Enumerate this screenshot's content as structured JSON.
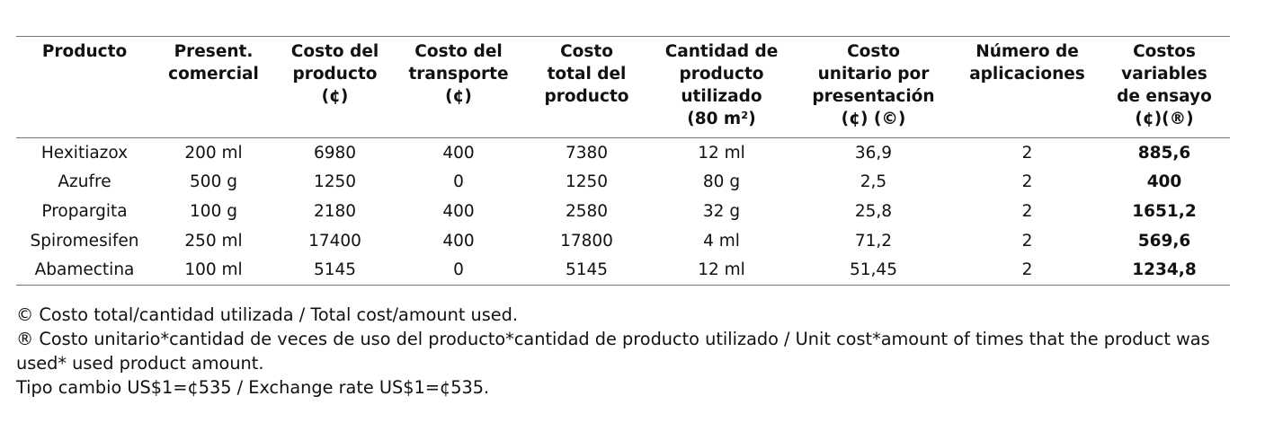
{
  "table": {
    "header": [
      [
        "Producto"
      ],
      [
        "Present.",
        "comercial"
      ],
      [
        "Costo del",
        "producto",
        "(¢)"
      ],
      [
        "Costo del",
        "transporte",
        "(¢)"
      ],
      [
        "Costo",
        "total del",
        "producto"
      ],
      [
        "Cantidad de",
        "producto",
        "utilizado",
        "(80 m²)"
      ],
      [
        "Costo",
        "unitario por",
        "presentación",
        "(¢) (©)"
      ],
      [
        "Número de",
        "aplicaciones"
      ],
      [
        "Costos",
        "variables",
        "de ensayo",
        "(¢)(®)"
      ]
    ],
    "rows": [
      [
        "Hexitiazox",
        "200 ml",
        "6980",
        "400",
        "7380",
        "12 ml",
        "36,9",
        "2",
        "885,6"
      ],
      [
        "Azufre",
        "500 g",
        "1250",
        "0",
        "1250",
        "80 g",
        "2,5",
        "2",
        "400"
      ],
      [
        "Propargita",
        "100 g",
        "2180",
        "400",
        "2580",
        "32 g",
        "25,8",
        "2",
        "1651,2"
      ],
      [
        "Spiromesifen",
        "250 ml",
        "17400",
        "400",
        "17800",
        "4 ml",
        "71,2",
        "2",
        "569,6"
      ],
      [
        "Abamectina",
        "100 ml",
        "5145",
        "0",
        "5145",
        "12 ml",
        "51,45",
        "2",
        "1234,8"
      ]
    ]
  },
  "notes": [
    "© Costo total/cantidad utilizada / Total cost/amount used.",
    "® Costo unitario*cantidad de veces de uso del producto*cantidad de producto utilizado / Unit cost*amount of times that the product was used* used product amount.",
    "Tipo cambio US$1=¢535 / Exchange rate US$1=¢535."
  ]
}
